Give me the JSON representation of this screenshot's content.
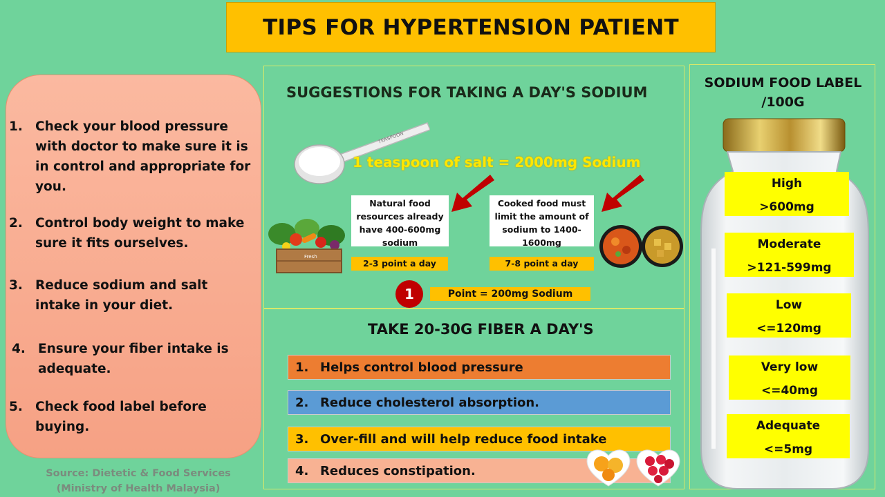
{
  "title": "TIPS FOR HYPERTENSION PATIENT",
  "tips": [
    {
      "num": "1.",
      "text": "Check your blood pressure with doctor to make sure it is in control and appropriate for you."
    },
    {
      "num": "2.",
      "text": "Control body weight to make sure it  fits ourselves."
    },
    {
      "num": "3.",
      "text": "Reduce sodium and salt intake in your diet."
    },
    {
      "num": "4.",
      "text": "Ensure your fiber intake is adequate."
    },
    {
      "num": "5.",
      "text": "Check food label before buying."
    }
  ],
  "source": {
    "line1": "Source: Dietetic & Food Services",
    "line2": "(Ministry of Health Malaysia)"
  },
  "sodium": {
    "title": "SUGGESTIONS FOR TAKING A DAY'S SODIUM",
    "spoon_text": "TEASPOON",
    "teaspoon_equation": "1 teaspoon of salt = 2000mg Sodium",
    "natural_card": "Natural food resources already have 400-600mg sodium",
    "natural_points": "2-3 point a day",
    "cooked_card": "Cooked food must limit the amount of sodium to 1400-1600mg",
    "cooked_points": "7-8 point a day",
    "point_number": "1",
    "point_equation": "Point = 200mg Sodium",
    "crate_text": "Fresh"
  },
  "fiber": {
    "title": "TAKE 20-30G FIBER A DAY'S",
    "items": [
      {
        "num": "1.",
        "text": "Helps control blood pressure",
        "color": "#ed7d31"
      },
      {
        "num": "2.",
        "text": "Reduce cholesterol absorption.",
        "color": "#5b9bd5"
      },
      {
        "num": "3.",
        "text": "Over-fill and will help reduce food intake",
        "color": "#ffc000"
      },
      {
        "num": "4.",
        "text": "Reduces constipation.",
        "color": "#f8b293"
      }
    ]
  },
  "label": {
    "title_line1": "SODIUM FOOD LABEL",
    "title_line2": "/100G",
    "levels": [
      {
        "name": "High",
        "value": ">600mg"
      },
      {
        "name": "Moderate",
        "value": ">121-599mg"
      },
      {
        "name": "Low",
        "value": "<=120mg"
      },
      {
        "name": "Very low",
        "value": "<=40mg"
      },
      {
        "name": "Adequate",
        "value": "<=5mg"
      }
    ]
  },
  "colors": {
    "background": "#6fd39b",
    "title_bg": "#ffc000",
    "tips_bg": "#f8a98c",
    "level_bg": "#ffff00",
    "arrow": "#c00000"
  }
}
